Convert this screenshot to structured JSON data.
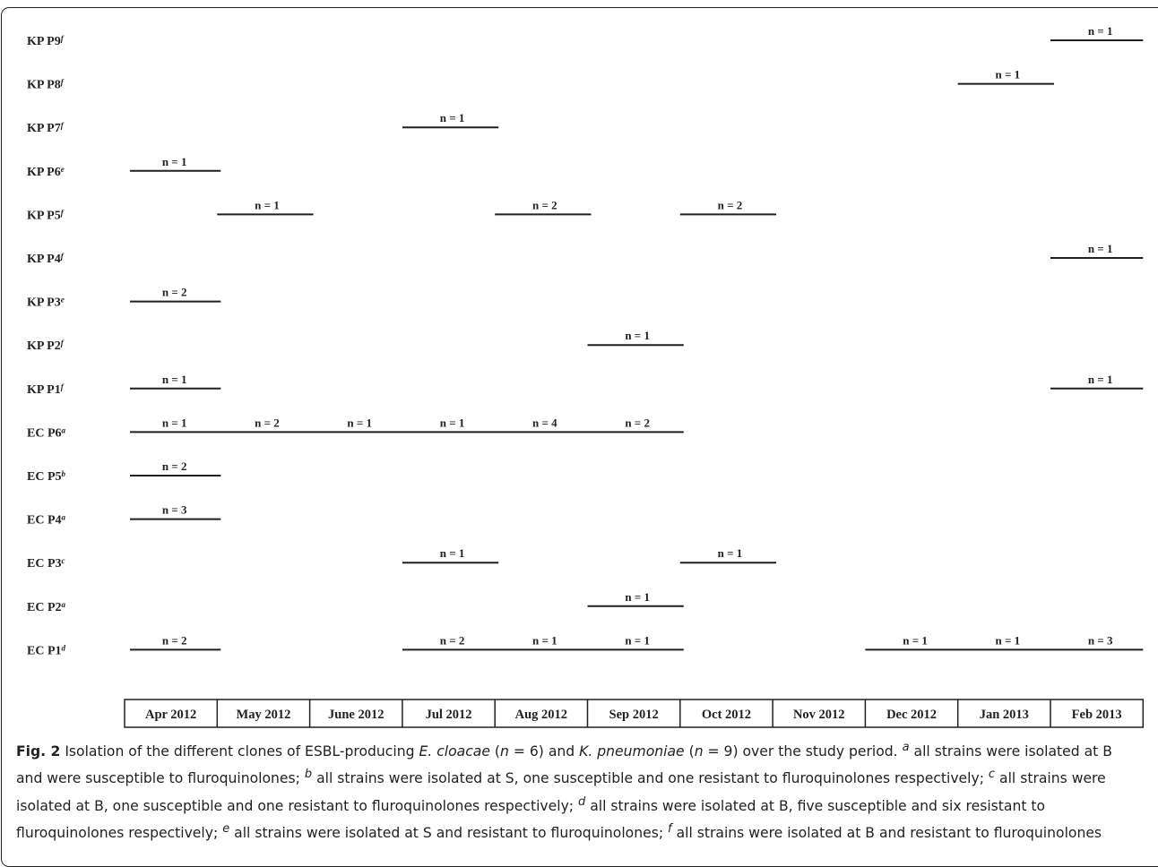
{
  "chart_data": {
    "type": "timeline",
    "x_categories": [
      "Apr 2012",
      "May 2012",
      "June 2012",
      "Jul 2012",
      "Aug 2012",
      "Sep 2012",
      "Oct 2012",
      "Nov 2012",
      "Dec 2012",
      "Jan 2013",
      "Feb 2013"
    ],
    "rows": [
      {
        "label": "KP P9",
        "sup": "f",
        "segments": [
          {
            "month": 10,
            "n": "n = 1"
          }
        ]
      },
      {
        "label": "KP P8",
        "sup": "f",
        "segments": [
          {
            "month": 9,
            "n": "n = 1"
          }
        ]
      },
      {
        "label": "KP P7",
        "sup": "f",
        "segments": [
          {
            "month": 3,
            "n": "n = 1"
          }
        ]
      },
      {
        "label": "KP P6",
        "sup": "e",
        "segments": [
          {
            "month": 0,
            "n": "n = 1"
          }
        ]
      },
      {
        "label": "KP P5",
        "sup": "f",
        "segments": [
          {
            "month": 1,
            "n": "n = 1"
          },
          {
            "month": 4,
            "n": "n = 2"
          },
          {
            "month": 6,
            "n": "n = 2"
          }
        ]
      },
      {
        "label": "KP P4",
        "sup": "f",
        "segments": [
          {
            "month": 10,
            "n": "n = 1"
          }
        ]
      },
      {
        "label": "KP P3",
        "sup": "e",
        "segments": [
          {
            "month": 0,
            "n": "n = 2"
          }
        ]
      },
      {
        "label": "KP P2",
        "sup": "f",
        "segments": [
          {
            "month": 5,
            "n": "n = 1"
          }
        ]
      },
      {
        "label": "KP P1",
        "sup": "f",
        "segments": [
          {
            "month": 0,
            "n": "n = 1"
          },
          {
            "month": 10,
            "n": "n = 1"
          }
        ]
      },
      {
        "label": "EC P6",
        "sup": "a",
        "segments": [
          {
            "month": 0,
            "n": "n = 1"
          },
          {
            "month": 1,
            "n": "n = 2"
          },
          {
            "month": 2,
            "n": "n = 1"
          },
          {
            "month": 3,
            "n": "n = 1"
          },
          {
            "month": 4,
            "n": "n = 4"
          },
          {
            "month": 5,
            "n": "n = 2"
          }
        ]
      },
      {
        "label": "EC P5",
        "sup": "b",
        "segments": [
          {
            "month": 0,
            "n": "n = 2"
          }
        ]
      },
      {
        "label": "EC P4",
        "sup": "a",
        "segments": [
          {
            "month": 0,
            "n": "n = 3"
          }
        ]
      },
      {
        "label": "EC P3",
        "sup": "c",
        "segments": [
          {
            "month": 3,
            "n": "n = 1"
          },
          {
            "month": 6,
            "n": "n = 1"
          }
        ]
      },
      {
        "label": "EC P2",
        "sup": "a",
        "segments": [
          {
            "month": 5,
            "n": "n = 1"
          }
        ]
      },
      {
        "label": "EC P1",
        "sup": "d",
        "segments": [
          {
            "month": 0,
            "n": "n = 2"
          },
          {
            "month": 3,
            "n": "n = 2"
          },
          {
            "month": 4,
            "n": "n = 1"
          },
          {
            "month": 5,
            "n": "n = 1"
          },
          {
            "month": 8,
            "n": "n = 1"
          },
          {
            "month": 9,
            "n": "n = 1"
          },
          {
            "month": 10,
            "n": "n = 3"
          }
        ]
      }
    ]
  },
  "caption": {
    "label": "Fig. 2",
    "text_html": " Isolation of the different clones of ESBL-producing <i>E. cloacae</i> (<i>n</i> = 6) and <i>K. pneumoniae</i> (<i>n</i> = 9) over the study period. <sup><i>a</i></sup> all strains were isolated at B and were susceptible to fluroquinolones; <sup><i>b</i></sup> all strains were isolated at S, one susceptible and one resistant to fluroquinolones respectively; <sup><i>c</i></sup> all strains were isolated at B, one susceptible and one resistant to fluroquinolones respectively; <sup><i>d</i></sup> all strains were isolated at B, five susceptible and six resistant to fluroquinolones respectively; <sup><i>e</i></sup> all strains were isolated at S and resistant to fluroquinolones; <sup><i>f</i></sup> all strains were isolated at B and resistant to fluroquinolones"
  }
}
